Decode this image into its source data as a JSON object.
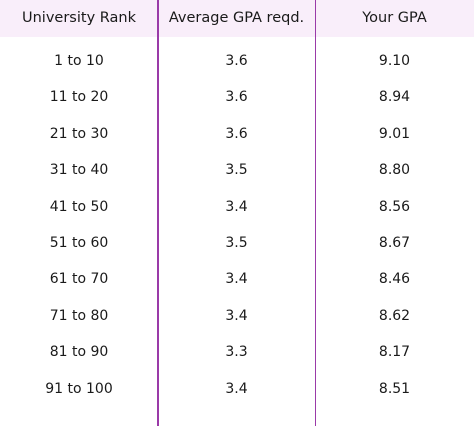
{
  "table": {
    "headers": [
      "University Rank",
      "Average GPA reqd.",
      "Your GPA"
    ],
    "rows": [
      [
        "1 to 10",
        "3.6",
        "9.10"
      ],
      [
        "11 to 20",
        "3.6",
        "8.94"
      ],
      [
        "21 to 30",
        "3.6",
        "9.01"
      ],
      [
        "31 to 40",
        "3.5",
        "8.80"
      ],
      [
        "41 to 50",
        "3.4",
        "8.56"
      ],
      [
        "51 to 60",
        "3.5",
        "8.67"
      ],
      [
        "61 to 70",
        "3.4",
        "8.46"
      ],
      [
        "71 to 80",
        "3.4",
        "8.62"
      ],
      [
        "81 to 90",
        "3.3",
        "8.17"
      ],
      [
        "91 to 100",
        "3.4",
        "8.51"
      ]
    ]
  },
  "colors": {
    "header_background": "#f9eefa",
    "column_divider": "#9a3aa8"
  }
}
